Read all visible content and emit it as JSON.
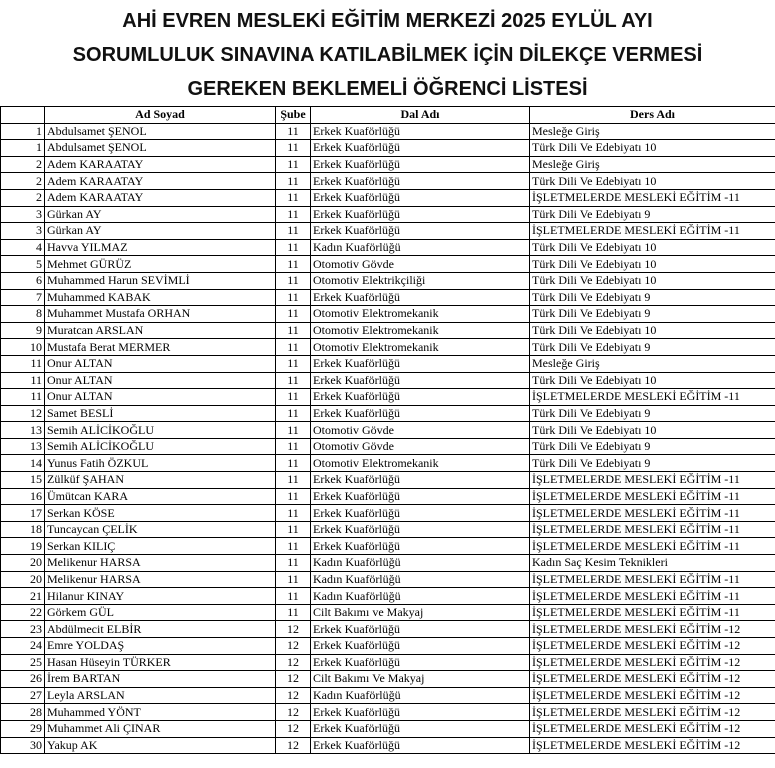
{
  "header": {
    "title_lines": [
      "AHİ EVREN MESLEKİ EĞİTİM MERKEZİ 2025 EYLÜL AYI",
      "SORUMLULUK SINAVINA KATILABİLMEK İÇİN DİLEKÇE VERMESİ",
      "GEREKEN BEKLEMELİ ÖĞRENCİ LİSTESİ"
    ]
  },
  "table": {
    "columns": [
      "Ad Soyad",
      "Şube",
      "Dal Adı",
      "Ders Adı"
    ],
    "rows": [
      [
        1,
        "Abdulsamet ŞENOL",
        11,
        "Erkek Kuaförlüğü",
        "Mesleğe Giriş"
      ],
      [
        1,
        "Abdulsamet ŞENOL",
        11,
        "Erkek Kuaförlüğü",
        "Türk Dili Ve Edebiyatı 10"
      ],
      [
        2,
        "Adem KARAATAY",
        11,
        "Erkek Kuaförlüğü",
        "Mesleğe Giriş"
      ],
      [
        2,
        "Adem KARAATAY",
        11,
        "Erkek Kuaförlüğü",
        "Türk Dili Ve Edebiyatı 10"
      ],
      [
        2,
        "Adem KARAATAY",
        11,
        "Erkek Kuaförlüğü",
        "İŞLETMELERDE MESLEKİ EĞİTİM -11"
      ],
      [
        3,
        "Gürkan AY",
        11,
        "Erkek Kuaförlüğü",
        "Türk Dili Ve Edebiyatı 9"
      ],
      [
        3,
        "Gürkan AY",
        11,
        "Erkek Kuaförlüğü",
        "İŞLETMELERDE MESLEKİ EĞİTİM -11"
      ],
      [
        4,
        "Havva YILMAZ",
        11,
        "Kadın Kuaförlüğü",
        "Türk Dili Ve Edebiyatı 10"
      ],
      [
        5,
        "Mehmet GÜRÜZ",
        11,
        "Otomotiv Gövde",
        "Türk Dili Ve Edebiyatı 10"
      ],
      [
        6,
        "Muhammed Harun SEVİMLİ",
        11,
        "Otomotiv Elektrikçiliği",
        "Türk Dili Ve Edebiyatı 10"
      ],
      [
        7,
        "Muhammed KABAK",
        11,
        "Erkek Kuaförlüğü",
        "Türk Dili Ve Edebiyatı 9"
      ],
      [
        8,
        "Muhammet Mustafa ORHAN",
        11,
        "Otomotiv Elektromekanik",
        "Türk Dili Ve Edebiyatı 9"
      ],
      [
        9,
        "Muratcan ARSLAN",
        11,
        "Otomotiv Elektromekanik",
        "Türk Dili Ve Edebiyatı 10"
      ],
      [
        10,
        "Mustafa Berat MERMER",
        11,
        "Otomotiv Elektromekanik",
        "Türk Dili Ve Edebiyatı 9"
      ],
      [
        11,
        "Onur ALTAN",
        11,
        "Erkek Kuaförlüğü",
        "Mesleğe Giriş"
      ],
      [
        11,
        "Onur ALTAN",
        11,
        "Erkek Kuaförlüğü",
        "Türk Dili Ve Edebiyatı 10"
      ],
      [
        11,
        "Onur ALTAN",
        11,
        "Erkek Kuaförlüğü",
        "İŞLETMELERDE MESLEKİ EĞİTİM -11"
      ],
      [
        12,
        "Samet BESLİ",
        11,
        "Erkek Kuaförlüğü",
        "Türk Dili Ve Edebiyatı 9"
      ],
      [
        13,
        "Semih ALİCİKOĞLU",
        11,
        "Otomotiv Gövde",
        "Türk Dili Ve Edebiyatı 10"
      ],
      [
        13,
        "Semih ALİCİKOĞLU",
        11,
        "Otomotiv Gövde",
        "Türk Dili Ve Edebiyatı 9"
      ],
      [
        14,
        "Yunus Fatih ÖZKUL",
        11,
        "Otomotiv Elektromekanik",
        "Türk Dili Ve Edebiyatı 9"
      ],
      [
        15,
        "Zülküf ŞAHAN",
        11,
        "Erkek Kuaförlüğü",
        "İŞLETMELERDE MESLEKİ EĞİTİM -11"
      ],
      [
        16,
        "Ümütcan KARA",
        11,
        "Erkek Kuaförlüğü",
        "İŞLETMELERDE MESLEKİ EĞİTİM -11"
      ],
      [
        17,
        "Serkan KÖSE",
        11,
        "Erkek Kuaförlüğü",
        "İŞLETMELERDE MESLEKİ EĞİTİM -11"
      ],
      [
        18,
        "Tuncaycan ÇELİK",
        11,
        "Erkek Kuaförlüğü",
        "İŞLETMELERDE MESLEKİ EĞİTİM -11"
      ],
      [
        19,
        "Serkan KILIÇ",
        11,
        "Erkek Kuaförlüğü",
        "İŞLETMELERDE MESLEKİ EĞİTİM -11"
      ],
      [
        20,
        "Melikenur HARSA",
        11,
        "Kadın Kuaförlüğü",
        "Kadın Saç Kesim Teknikleri"
      ],
      [
        20,
        "Melikenur HARSA",
        11,
        "Kadın Kuaförlüğü",
        "İŞLETMELERDE MESLEKİ EĞİTİM -11"
      ],
      [
        21,
        "Hilanur KINAY",
        11,
        "Kadın Kuaförlüğü",
        "İŞLETMELERDE MESLEKİ EĞİTİM -11"
      ],
      [
        22,
        "Görkem GÜL",
        11,
        "Cilt Bakımı ve Makyaj",
        "İŞLETMELERDE MESLEKİ EĞİTİM -11"
      ],
      [
        23,
        "Abdülmecit ELBİR",
        12,
        "Erkek Kuaförlüğü",
        "İŞLETMELERDE MESLEKİ EĞİTİM -12"
      ],
      [
        24,
        "Emre YOLDAŞ",
        12,
        "Erkek Kuaförlüğü",
        "İŞLETMELERDE MESLEKİ EĞİTİM -12"
      ],
      [
        25,
        "Hasan Hüseyin TÜRKER",
        12,
        "Erkek Kuaförlüğü",
        "İŞLETMELERDE MESLEKİ EĞİTİM -12"
      ],
      [
        26,
        "İrem BARTAN",
        12,
        "Cilt Bakımı Ve Makyaj",
        "İŞLETMELERDE MESLEKİ EĞİTİM -12"
      ],
      [
        27,
        "Leyla ARSLAN",
        12,
        "Kadın Kuaförlüğü",
        "İŞLETMELERDE MESLEKİ EĞİTİM -12"
      ],
      [
        28,
        "Muhammed YÖNT",
        12,
        "Erkek Kuaförlüğü",
        "İŞLETMELERDE MESLEKİ EĞİTİM -12"
      ],
      [
        29,
        "Muhammet Ali ÇINAR",
        12,
        "Erkek Kuaförlüğü",
        "İŞLETMELERDE MESLEKİ EĞİTİM -12"
      ],
      [
        30,
        "Yakup AK",
        12,
        "Erkek Kuaförlüğü",
        "İŞLETMELERDE MESLEKİ EĞİTİM -12"
      ]
    ]
  }
}
